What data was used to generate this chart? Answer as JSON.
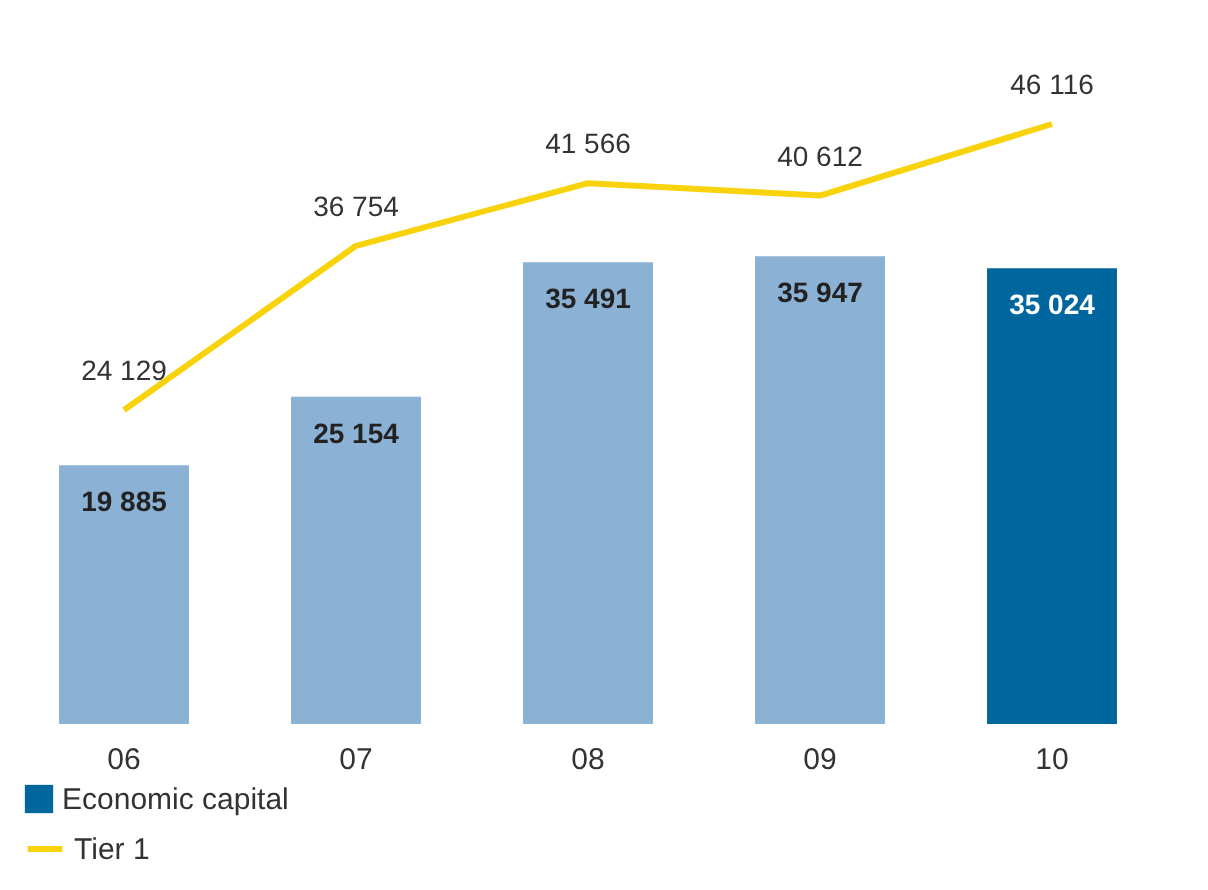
{
  "chart_data": {
    "type": "bar",
    "categories": [
      "06",
      "07",
      "08",
      "09",
      "10"
    ],
    "series": [
      {
        "name": "Economic capital",
        "color": "#00679e",
        "colors": [
          "#8bb1d5",
          "#8bb1d5",
          "#8bb1d5",
          "#8bb1d5",
          "#00679e"
        ],
        "values": [
          19885,
          25154,
          35491,
          35947,
          35024
        ]
      },
      {
        "name": "Tier 1",
        "type": "line",
        "color": "#f8d20a",
        "values": [
          24129,
          36754,
          41566,
          40612,
          46116
        ]
      }
    ],
    "data_labels": true,
    "legend": "bottom left",
    "grid": false,
    "marker": "none"
  }
}
